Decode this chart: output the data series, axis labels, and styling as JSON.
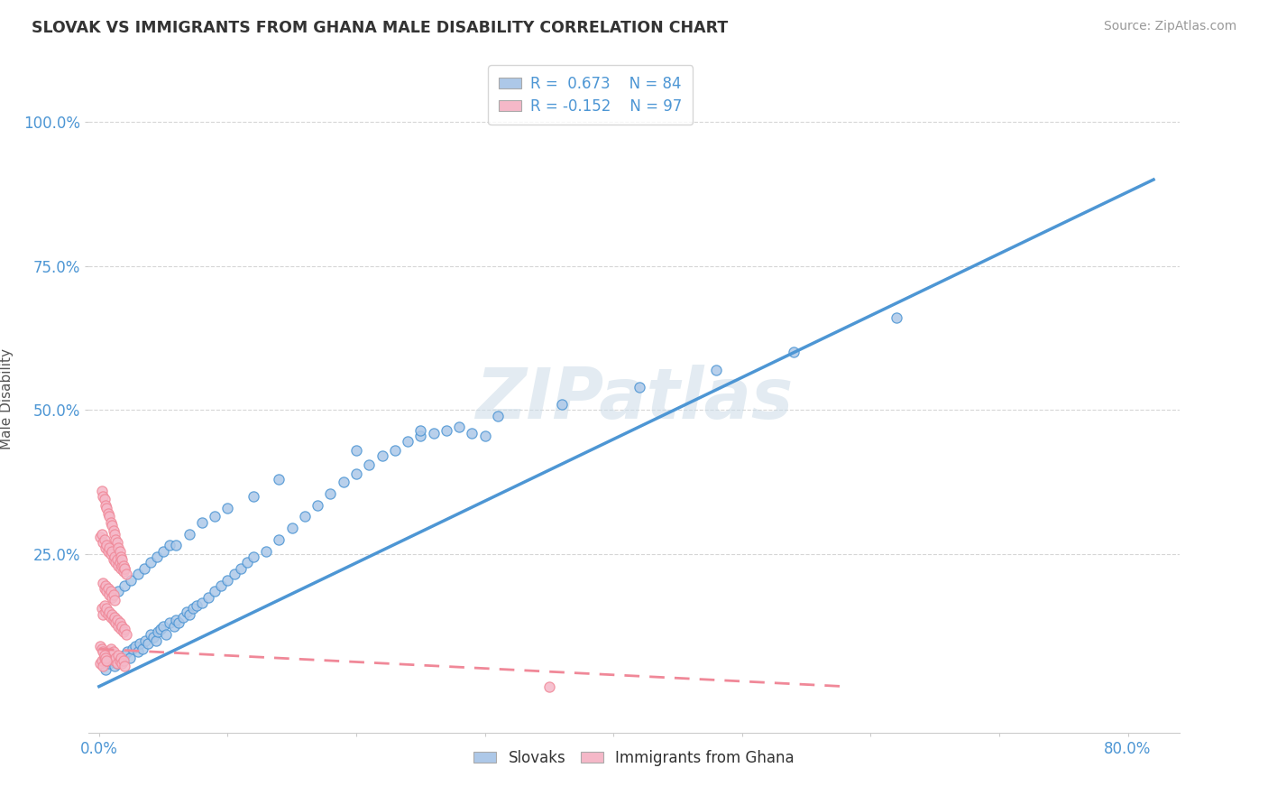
{
  "title": "SLOVAK VS IMMIGRANTS FROM GHANA MALE DISABILITY CORRELATION CHART",
  "source": "Source: ZipAtlas.com",
  "ylabel": "Male Disability",
  "legend_bottom": [
    "Slovaks",
    "Immigrants from Ghana"
  ],
  "blue_R": 0.673,
  "blue_N": 84,
  "pink_R": -0.152,
  "pink_N": 97,
  "blue_color": "#adc8e8",
  "pink_color": "#f5b8c8",
  "blue_line_color": "#4d96d4",
  "pink_line_color": "#f08898",
  "background_color": "#ffffff",
  "watermark": "ZIPatlas",
  "xlim": [
    -0.008,
    0.84
  ],
  "ylim": [
    -0.06,
    1.1
  ],
  "x_tick_positions": [
    0.0,
    0.1,
    0.2,
    0.3,
    0.4,
    0.5,
    0.6,
    0.7,
    0.8
  ],
  "y_tick_positions": [
    0.25,
    0.5,
    0.75,
    1.0
  ],
  "blue_line_x": [
    0.0,
    0.82
  ],
  "blue_line_y": [
    0.02,
    0.9
  ],
  "pink_line_x": [
    0.0,
    0.58
  ],
  "pink_line_y": [
    0.085,
    0.02
  ],
  "blue_scatter_x": [
    0.005,
    0.008,
    0.01,
    0.012,
    0.014,
    0.016,
    0.018,
    0.02,
    0.022,
    0.024,
    0.026,
    0.028,
    0.03,
    0.032,
    0.034,
    0.036,
    0.038,
    0.04,
    0.042,
    0.044,
    0.046,
    0.048,
    0.05,
    0.052,
    0.055,
    0.058,
    0.06,
    0.062,
    0.065,
    0.068,
    0.07,
    0.073,
    0.076,
    0.08,
    0.085,
    0.09,
    0.095,
    0.1,
    0.105,
    0.11,
    0.115,
    0.12,
    0.13,
    0.14,
    0.15,
    0.16,
    0.17,
    0.18,
    0.19,
    0.2,
    0.21,
    0.22,
    0.23,
    0.24,
    0.25,
    0.26,
    0.27,
    0.28,
    0.29,
    0.3,
    0.015,
    0.02,
    0.025,
    0.03,
    0.035,
    0.04,
    0.045,
    0.05,
    0.055,
    0.06,
    0.07,
    0.08,
    0.09,
    0.1,
    0.12,
    0.14,
    0.2,
    0.25,
    0.31,
    0.36,
    0.42,
    0.48,
    0.54,
    0.62
  ],
  "blue_scatter_y": [
    0.05,
    0.06,
    0.065,
    0.055,
    0.06,
    0.07,
    0.065,
    0.075,
    0.08,
    0.07,
    0.085,
    0.09,
    0.08,
    0.095,
    0.085,
    0.1,
    0.095,
    0.11,
    0.105,
    0.1,
    0.115,
    0.12,
    0.125,
    0.11,
    0.13,
    0.125,
    0.135,
    0.13,
    0.14,
    0.15,
    0.145,
    0.155,
    0.16,
    0.165,
    0.175,
    0.185,
    0.195,
    0.205,
    0.215,
    0.225,
    0.235,
    0.245,
    0.255,
    0.275,
    0.295,
    0.315,
    0.335,
    0.355,
    0.375,
    0.39,
    0.405,
    0.42,
    0.43,
    0.445,
    0.455,
    0.46,
    0.465,
    0.47,
    0.46,
    0.455,
    0.185,
    0.195,
    0.205,
    0.215,
    0.225,
    0.235,
    0.245,
    0.255,
    0.265,
    0.265,
    0.285,
    0.305,
    0.315,
    0.33,
    0.35,
    0.38,
    0.43,
    0.465,
    0.49,
    0.51,
    0.54,
    0.57,
    0.6,
    0.66
  ],
  "pink_scatter_x": [
    0.001,
    0.002,
    0.003,
    0.004,
    0.005,
    0.006,
    0.007,
    0.008,
    0.009,
    0.01,
    0.011,
    0.012,
    0.013,
    0.014,
    0.015,
    0.016,
    0.017,
    0.018,
    0.019,
    0.02,
    0.002,
    0.003,
    0.004,
    0.005,
    0.006,
    0.007,
    0.008,
    0.009,
    0.01,
    0.011,
    0.012,
    0.013,
    0.014,
    0.015,
    0.016,
    0.017,
    0.018,
    0.019,
    0.02,
    0.021,
    0.003,
    0.004,
    0.005,
    0.006,
    0.007,
    0.008,
    0.009,
    0.01,
    0.011,
    0.012,
    0.001,
    0.002,
    0.003,
    0.004,
    0.005,
    0.006,
    0.007,
    0.008,
    0.009,
    0.01,
    0.011,
    0.012,
    0.013,
    0.014,
    0.015,
    0.016,
    0.017,
    0.018,
    0.019,
    0.02,
    0.002,
    0.003,
    0.004,
    0.005,
    0.006,
    0.007,
    0.008,
    0.009,
    0.01,
    0.011,
    0.012,
    0.013,
    0.014,
    0.015,
    0.016,
    0.017,
    0.018,
    0.019,
    0.02,
    0.021,
    0.001,
    0.002,
    0.003,
    0.004,
    0.005,
    0.35,
    0.006
  ],
  "pink_scatter_y": [
    0.06,
    0.065,
    0.055,
    0.07,
    0.075,
    0.065,
    0.08,
    0.07,
    0.085,
    0.075,
    0.08,
    0.065,
    0.07,
    0.06,
    0.075,
    0.065,
    0.07,
    0.06,
    0.065,
    0.055,
    0.155,
    0.145,
    0.16,
    0.15,
    0.155,
    0.145,
    0.15,
    0.14,
    0.145,
    0.135,
    0.14,
    0.13,
    0.135,
    0.125,
    0.13,
    0.12,
    0.125,
    0.115,
    0.12,
    0.11,
    0.2,
    0.19,
    0.195,
    0.185,
    0.19,
    0.18,
    0.185,
    0.175,
    0.18,
    0.17,
    0.28,
    0.285,
    0.27,
    0.275,
    0.26,
    0.265,
    0.255,
    0.26,
    0.25,
    0.255,
    0.24,
    0.245,
    0.235,
    0.24,
    0.23,
    0.235,
    0.225,
    0.23,
    0.22,
    0.225,
    0.36,
    0.35,
    0.345,
    0.335,
    0.33,
    0.32,
    0.315,
    0.305,
    0.3,
    0.29,
    0.285,
    0.275,
    0.27,
    0.26,
    0.255,
    0.245,
    0.24,
    0.23,
    0.225,
    0.215,
    0.09,
    0.085,
    0.08,
    0.075,
    0.07,
    0.02,
    0.065
  ]
}
